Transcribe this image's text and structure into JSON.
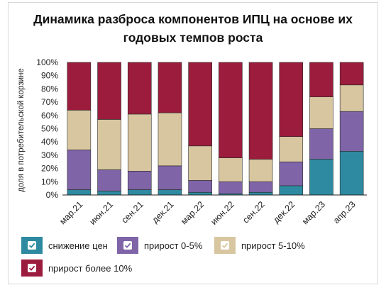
{
  "title": "Динамика разброса компонентов ИПЦ на основе их годовых темпов роста",
  "chart_data": {
    "type": "bar",
    "stacked": true,
    "percent": true,
    "categories": [
      "мар.21",
      "июн.21",
      "сен.21",
      "дек.21",
      "мар.22",
      "июн.22",
      "сен.22",
      "дек.22",
      "мар.23",
      "апр.23"
    ],
    "ylabel": "доля в потребительской корзине",
    "xlabel": "",
    "ylim": [
      0,
      100
    ],
    "yticks": [
      "0%",
      "10%",
      "20%",
      "30%",
      "40%",
      "50%",
      "60%",
      "70%",
      "80%",
      "90%",
      "100%"
    ],
    "grid": false,
    "legend_position": "bottom",
    "series": [
      {
        "name": "снижение цен",
        "color": "#2e8aa0",
        "values": [
          4,
          3,
          4,
          4,
          2,
          1,
          2,
          7,
          27,
          33
        ]
      },
      {
        "name": "прирост 0-5%",
        "color": "#7f64a8",
        "values": [
          30,
          16,
          14,
          18,
          9,
          9,
          8,
          18,
          23,
          30
        ]
      },
      {
        "name": "прирост 5-10%",
        "color": "#d7c6a0",
        "values": [
          30,
          38,
          43,
          40,
          26,
          18,
          17,
          19,
          24,
          20
        ]
      },
      {
        "name": "прирост более 10%",
        "color": "#9b1c3c",
        "values": [
          36,
          43,
          39,
          38,
          63,
          72,
          73,
          56,
          26,
          17
        ]
      }
    ]
  }
}
